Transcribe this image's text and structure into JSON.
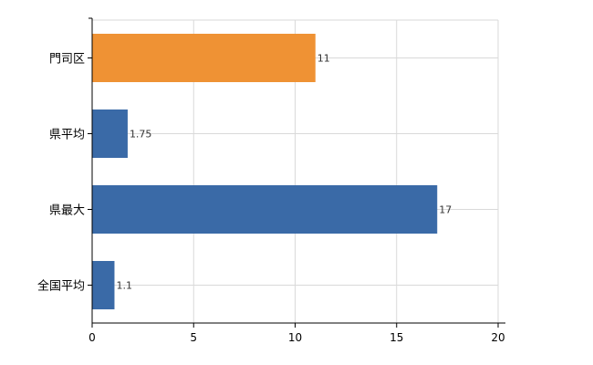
{
  "chart_data": {
    "type": "bar",
    "orientation": "horizontal",
    "categories": [
      "門司区",
      "県平均",
      "県最大",
      "全国平均"
    ],
    "values": [
      11,
      1.75,
      17,
      1.1
    ],
    "data_labels": [
      "11",
      "1.75",
      "17",
      "1.1"
    ],
    "bar_colors": [
      "#ef9234",
      "#3a6aa7",
      "#3a6aa7",
      "#3a6aa7"
    ],
    "xlim": [
      0,
      20
    ],
    "x_ticks": [
      0,
      5,
      10,
      15,
      20
    ],
    "x_tick_labels": [
      "0",
      "5",
      "10",
      "15",
      "20"
    ],
    "grid": true,
    "title": "",
    "xlabel": "",
    "ylabel": ""
  }
}
